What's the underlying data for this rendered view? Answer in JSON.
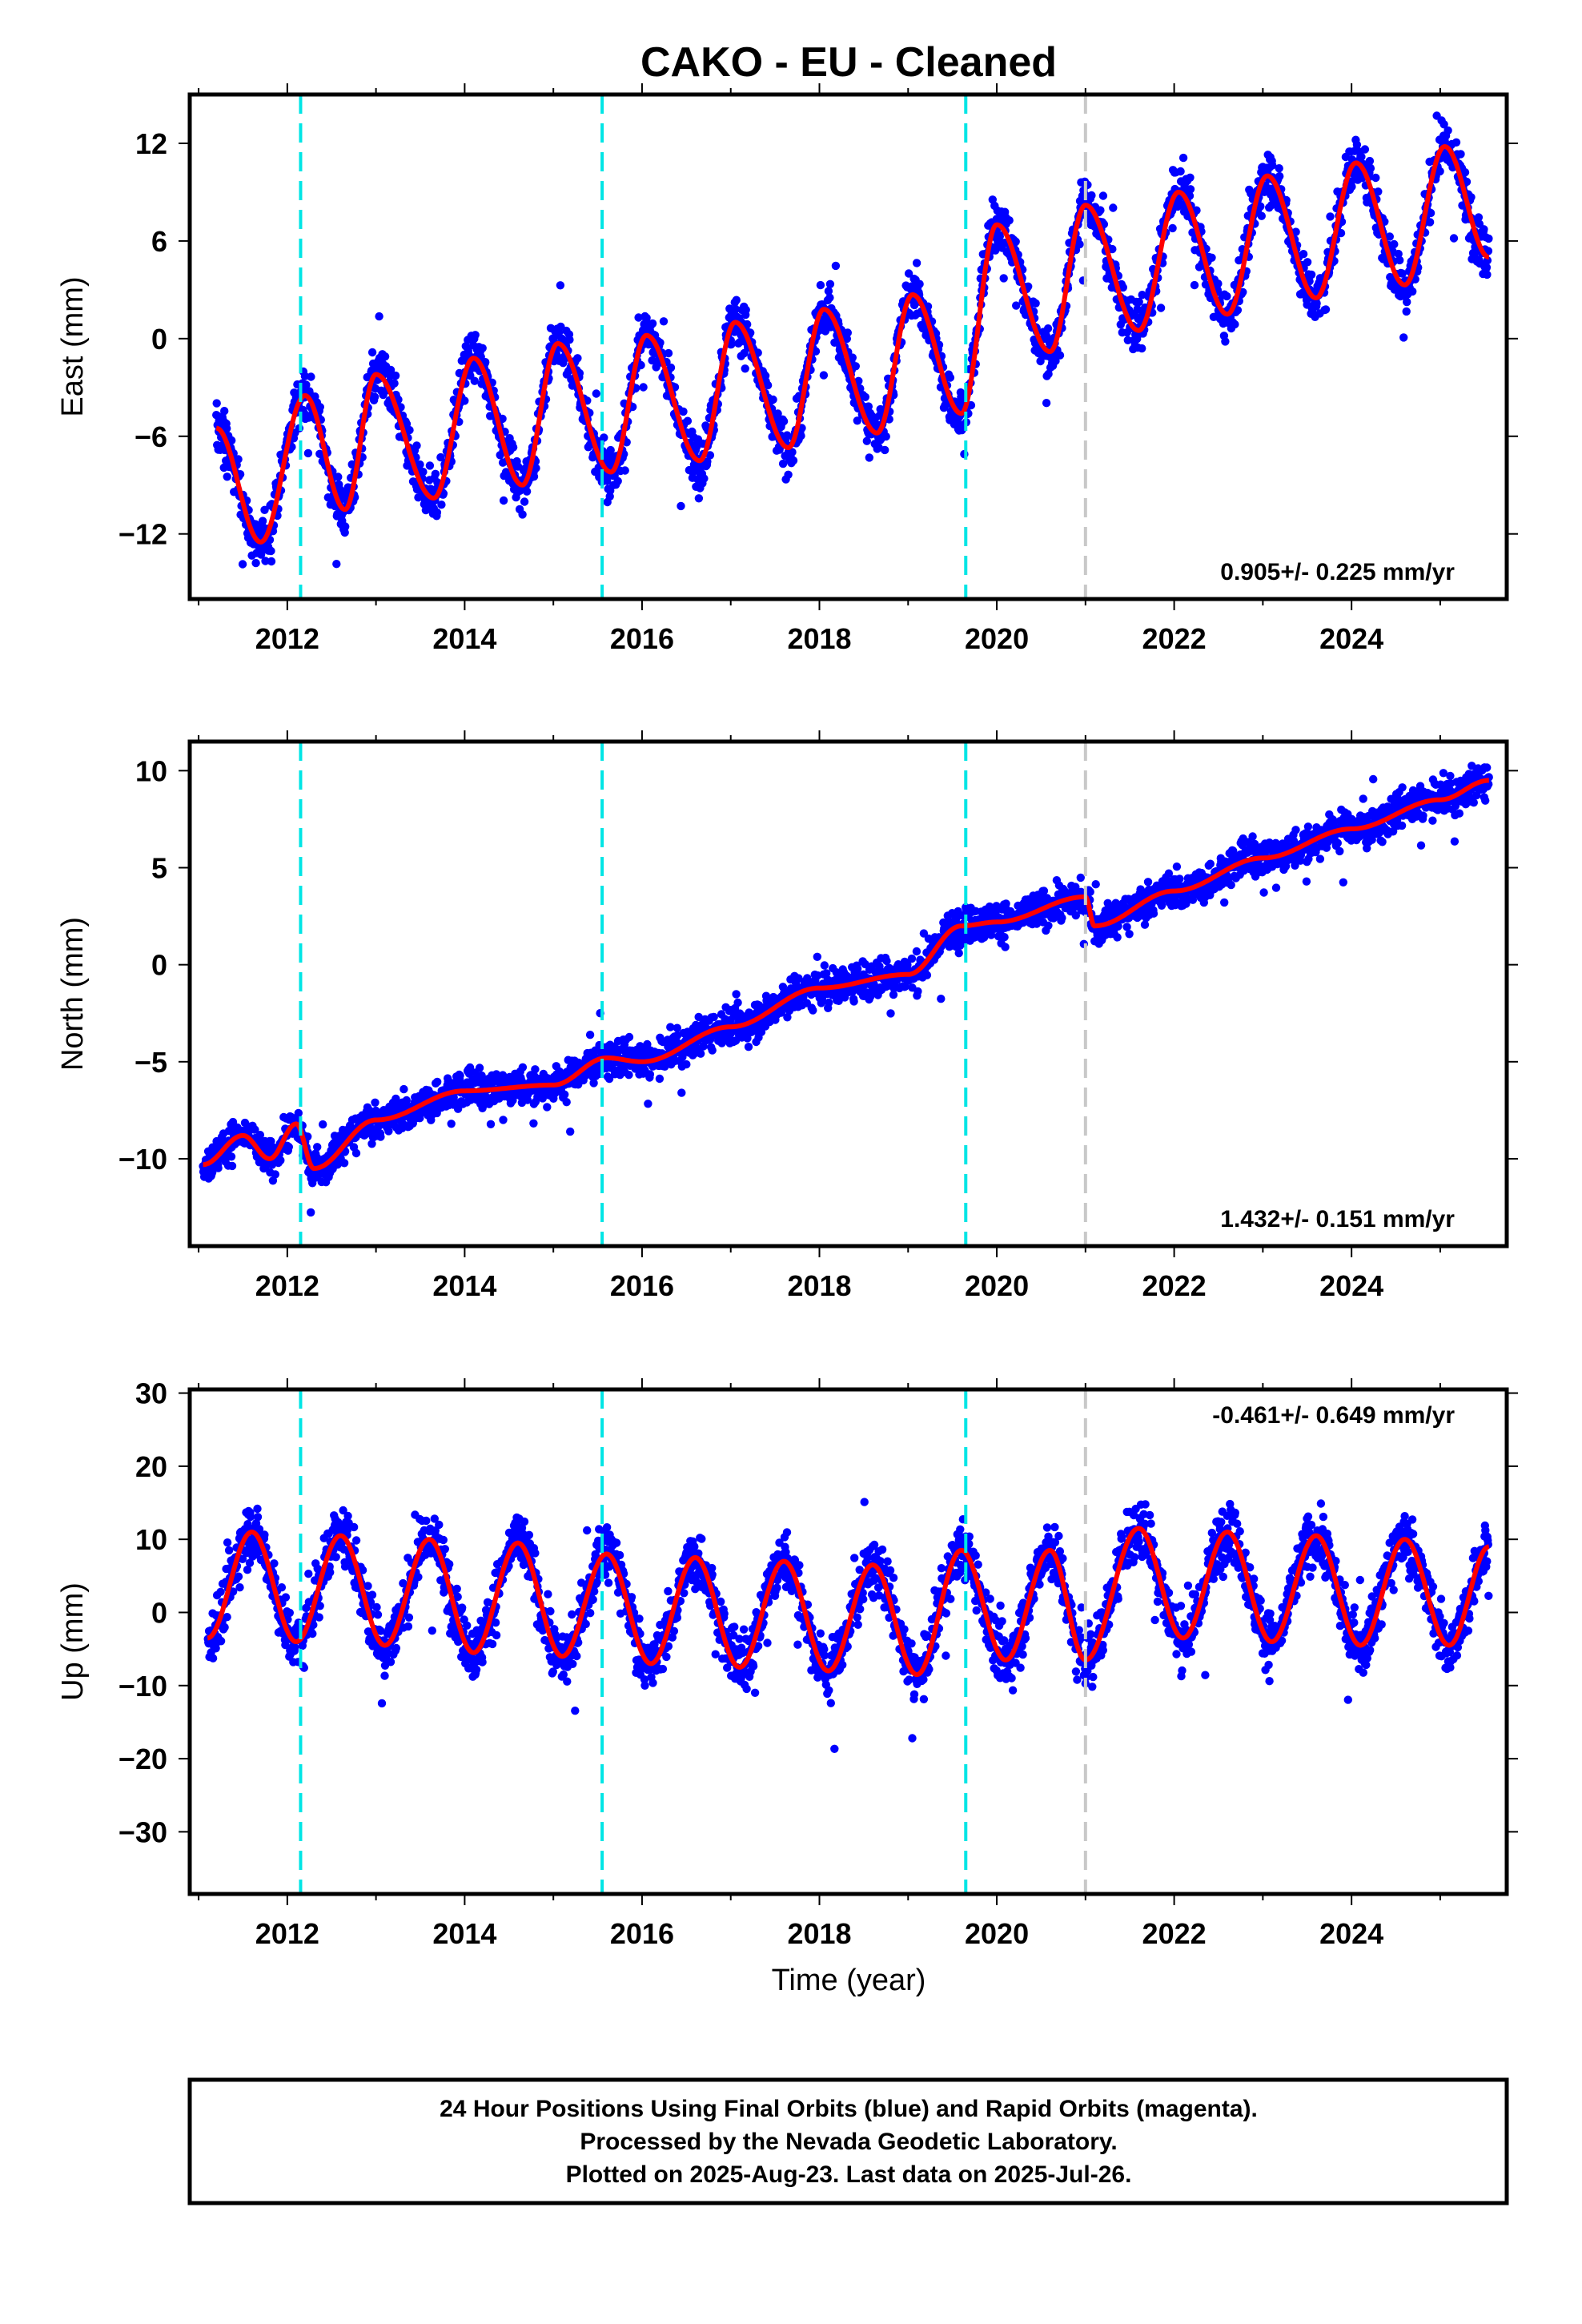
{
  "title": "CAKO  - EU - Cleaned",
  "xlabel": "Time (year)",
  "footer": {
    "line1": "24 Hour Positions Using Final Orbits (blue) and Rapid Orbits (magenta).",
    "line2": "Processed by the Nevada Geodetic Laboratory.",
    "line3": "Plotted on 2025-Aug-23. Last data on 2025-Jul-26."
  },
  "colors": {
    "points": "#0000ff",
    "model": "#ff0000",
    "equipment_change": "#00e5e5",
    "other_event": "#c8c8c8"
  },
  "chart_data": [
    {
      "type": "scatter",
      "name": "east",
      "ylabel": "East (mm)",
      "xlim": [
        2010.9,
        2025.75
      ],
      "ylim": [
        -16,
        15
      ],
      "xticks": [
        2012,
        2014,
        2016,
        2018,
        2020,
        2022,
        2024
      ],
      "yticks": [
        -12,
        -6,
        0,
        6,
        12
      ],
      "rate_label": "0.905+/- 0.225 mm/yr",
      "rate_position": "bottom-right",
      "events_cyan": [
        2012.15,
        2015.55,
        2019.65
      ],
      "events_gray": [
        2021.0
      ],
      "samples": [
        {
          "x": 2011.2,
          "y": -5.5
        },
        {
          "x": 2011.7,
          "y": -12.5
        },
        {
          "x": 2012.2,
          "y": -3.5
        },
        {
          "x": 2012.65,
          "y": -10.5
        },
        {
          "x": 2013.0,
          "y": -2.2
        },
        {
          "x": 2013.65,
          "y": -9.8
        },
        {
          "x": 2014.1,
          "y": -1.2
        },
        {
          "x": 2014.65,
          "y": -9.0
        },
        {
          "x": 2015.05,
          "y": -0.3
        },
        {
          "x": 2015.65,
          "y": -8.2
        },
        {
          "x": 2016.05,
          "y": 0.2
        },
        {
          "x": 2016.65,
          "y": -7.5
        },
        {
          "x": 2017.05,
          "y": 1.0
        },
        {
          "x": 2017.65,
          "y": -6.7
        },
        {
          "x": 2018.05,
          "y": 1.8
        },
        {
          "x": 2018.65,
          "y": -5.8
        },
        {
          "x": 2019.05,
          "y": 2.7
        },
        {
          "x": 2019.6,
          "y": -4.6
        },
        {
          "x": 2020.0,
          "y": 7.0
        },
        {
          "x": 2020.6,
          "y": -0.8
        },
        {
          "x": 2021.0,
          "y": 8.2
        },
        {
          "x": 2021.6,
          "y": 0.5
        },
        {
          "x": 2022.05,
          "y": 9.0
        },
        {
          "x": 2022.6,
          "y": 1.5
        },
        {
          "x": 2023.05,
          "y": 10.0
        },
        {
          "x": 2023.6,
          "y": 2.5
        },
        {
          "x": 2024.05,
          "y": 10.8
        },
        {
          "x": 2024.6,
          "y": 3.3
        },
        {
          "x": 2025.05,
          "y": 11.8
        },
        {
          "x": 2025.55,
          "y": 5.0
        }
      ],
      "scatter_amplitude": 2.0
    },
    {
      "type": "scatter",
      "name": "north",
      "ylabel": "North (mm)",
      "xlim": [
        2010.9,
        2025.75
      ],
      "ylim": [
        -14.5,
        11.5
      ],
      "xticks": [
        2012,
        2014,
        2016,
        2018,
        2020,
        2022,
        2024
      ],
      "yticks": [
        -10,
        -5,
        0,
        5,
        10
      ],
      "rate_label": "1.432+/- 0.151 mm/yr",
      "rate_position": "bottom-right",
      "events_cyan": [
        2012.15,
        2015.55,
        2019.65
      ],
      "events_gray": [
        2021.0
      ],
      "samples": [
        {
          "x": 2011.05,
          "y": -10.3
        },
        {
          "x": 2011.5,
          "y": -8.8
        },
        {
          "x": 2011.8,
          "y": -10.0
        },
        {
          "x": 2012.1,
          "y": -8.2
        },
        {
          "x": 2012.3,
          "y": -10.5
        },
        {
          "x": 2013.0,
          "y": -8.0
        },
        {
          "x": 2014.0,
          "y": -6.5
        },
        {
          "x": 2015.0,
          "y": -6.2
        },
        {
          "x": 2015.6,
          "y": -4.8
        },
        {
          "x": 2016.0,
          "y": -5.0
        },
        {
          "x": 2017.0,
          "y": -3.2
        },
        {
          "x": 2018.0,
          "y": -1.2
        },
        {
          "x": 2019.0,
          "y": -0.5
        },
        {
          "x": 2019.6,
          "y": 2.0
        },
        {
          "x": 2020.0,
          "y": 2.2
        },
        {
          "x": 2021.0,
          "y": 3.5
        },
        {
          "x": 2021.1,
          "y": 2.0
        },
        {
          "x": 2022.0,
          "y": 3.8
        },
        {
          "x": 2023.0,
          "y": 5.5
        },
        {
          "x": 2024.0,
          "y": 7.0
        },
        {
          "x": 2025.0,
          "y": 8.5
        },
        {
          "x": 2025.55,
          "y": 9.5
        }
      ],
      "scatter_amplitude": 1.2
    },
    {
      "type": "scatter",
      "name": "up",
      "ylabel": "Up (mm)",
      "xlim": [
        2010.9,
        2025.75
      ],
      "ylim": [
        -38.5,
        30.5
      ],
      "xticks": [
        2012,
        2014,
        2016,
        2018,
        2020,
        2022,
        2024
      ],
      "yticks": [
        -30,
        -20,
        -10,
        0,
        10,
        20,
        30
      ],
      "rate_label": "-0.461+/- 0.649 mm/yr",
      "rate_position": "top-right",
      "events_cyan": [
        2012.15,
        2015.55,
        2019.65
      ],
      "events_gray": [
        2021.0
      ],
      "samples": [
        {
          "x": 2011.1,
          "y": -3.5
        },
        {
          "x": 2011.6,
          "y": 11.0
        },
        {
          "x": 2012.1,
          "y": -4.0
        },
        {
          "x": 2012.6,
          "y": 10.5
        },
        {
          "x": 2013.1,
          "y": -4.5
        },
        {
          "x": 2013.6,
          "y": 10.0
        },
        {
          "x": 2014.1,
          "y": -5.5
        },
        {
          "x": 2014.6,
          "y": 9.5
        },
        {
          "x": 2015.1,
          "y": -6.0
        },
        {
          "x": 2015.6,
          "y": 8.0
        },
        {
          "x": 2016.1,
          "y": -7.0
        },
        {
          "x": 2016.6,
          "y": 7.5
        },
        {
          "x": 2017.1,
          "y": -7.5
        },
        {
          "x": 2017.6,
          "y": 7.0
        },
        {
          "x": 2018.1,
          "y": -8.0
        },
        {
          "x": 2018.6,
          "y": 6.5
        },
        {
          "x": 2019.1,
          "y": -8.5
        },
        {
          "x": 2019.6,
          "y": 8.5
        },
        {
          "x": 2020.1,
          "y": -6.5
        },
        {
          "x": 2020.6,
          "y": 8.5
        },
        {
          "x": 2021.0,
          "y": -6.5
        },
        {
          "x": 2021.6,
          "y": 11.5
        },
        {
          "x": 2022.1,
          "y": -3.5
        },
        {
          "x": 2022.6,
          "y": 11.0
        },
        {
          "x": 2023.1,
          "y": -4.0
        },
        {
          "x": 2023.6,
          "y": 10.5
        },
        {
          "x": 2024.1,
          "y": -4.5
        },
        {
          "x": 2024.6,
          "y": 10.0
        },
        {
          "x": 2025.1,
          "y": -4.5
        },
        {
          "x": 2025.55,
          "y": 9.0
        }
      ],
      "scatter_amplitude": 5.0
    }
  ]
}
